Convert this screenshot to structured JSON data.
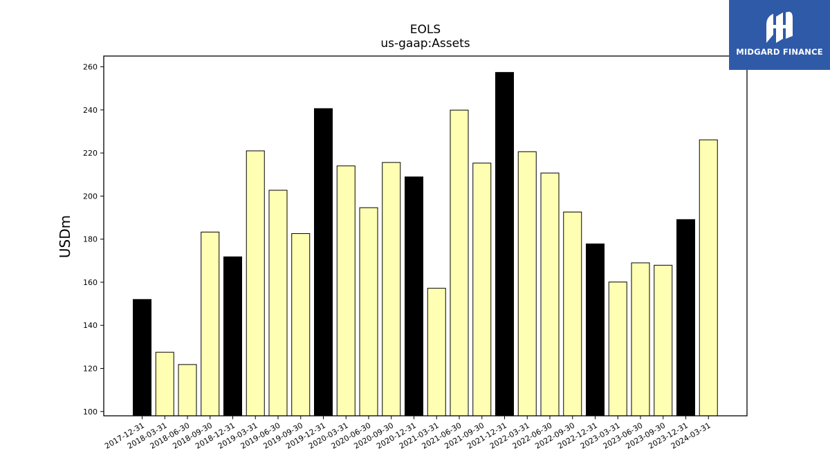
{
  "chart_data": {
    "type": "bar",
    "title": "EOLS",
    "subtitle": "us-gaap:Assets",
    "xlabel": "",
    "ylabel": "USDm",
    "ylim": [
      98,
      265
    ],
    "yticks": [
      100,
      120,
      140,
      160,
      180,
      200,
      220,
      240,
      260
    ],
    "grid": false,
    "colors": {
      "year_end": "#000000",
      "quarter": "#ffffb3",
      "edge": "#000000"
    },
    "categories": [
      "2017-12-31",
      "2018-03-31",
      "2018-06-30",
      "2018-09-30",
      "2018-12-31",
      "2019-03-31",
      "2019-06-30",
      "2019-09-30",
      "2019-12-31",
      "2020-03-31",
      "2020-06-30",
      "2020-09-30",
      "2020-12-31",
      "2021-03-31",
      "2021-06-30",
      "2021-09-30",
      "2021-12-31",
      "2022-03-31",
      "2022-06-30",
      "2022-09-30",
      "2022-12-31",
      "2023-03-31",
      "2023-06-30",
      "2023-09-30",
      "2023-12-31",
      "2024-03-31"
    ],
    "values": [
      152.0,
      127.5,
      121.8,
      183.3,
      171.8,
      221.0,
      202.7,
      182.6,
      240.6,
      214.0,
      194.6,
      215.6,
      208.9,
      157.2,
      239.9,
      215.3,
      257.4,
      220.6,
      210.7,
      192.6,
      177.8,
      160.1,
      169.0,
      167.9,
      189.1,
      226.1
    ]
  },
  "logo": {
    "text": "MIDGARD FINANCE",
    "color": "#2f5aa8"
  }
}
